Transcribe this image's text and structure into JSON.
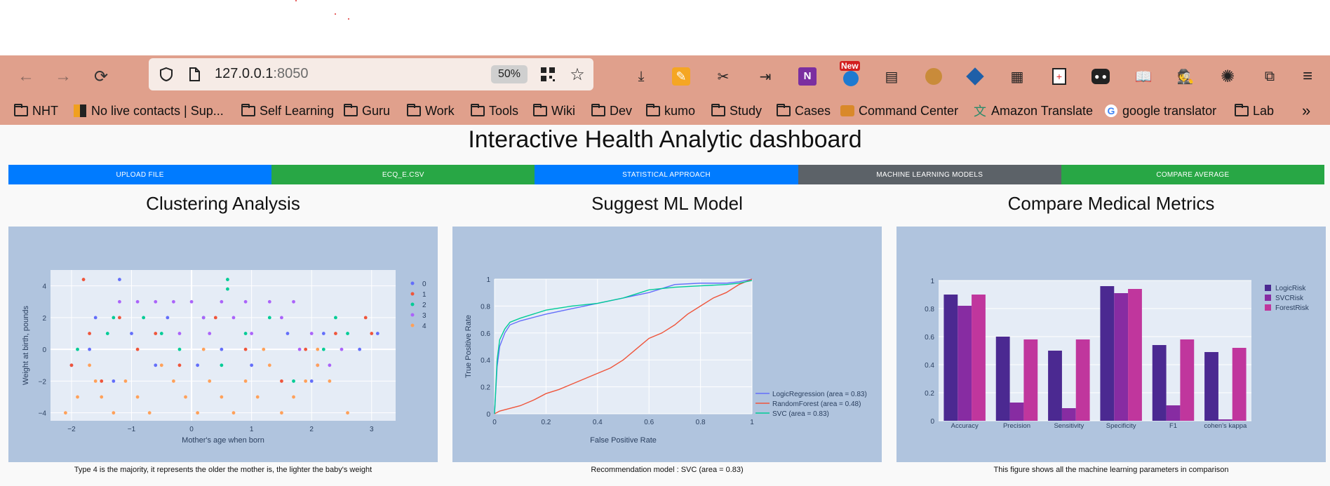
{
  "browser": {
    "url_host": "127.0.0.1",
    "url_port": ":8050",
    "zoom": "50%",
    "toolbar_icons": [
      "download-icon",
      "pencil-icon",
      "crossed-icon",
      "login-icon",
      "onenote-icon",
      "new-badge-icon",
      "app-icon",
      "monkey-icon",
      "diamond-icon",
      "apps-icon",
      "clipboard-icon",
      "glasses-icon",
      "book-icon",
      "mask-icon",
      "sun-icon",
      "extensions-icon",
      "menu-icon"
    ],
    "new_badge": "New",
    "bookmarks": [
      {
        "label": "NHT",
        "icon": "folder"
      },
      {
        "label": "No live contacts | Sup...",
        "icon": "app"
      },
      {
        "label": "Self Learning",
        "icon": "folder"
      },
      {
        "label": "Guru",
        "icon": "folder"
      },
      {
        "label": "Work",
        "icon": "folder"
      },
      {
        "label": "Tools",
        "icon": "folder"
      },
      {
        "label": "Wiki",
        "icon": "folder"
      },
      {
        "label": "Dev",
        "icon": "folder"
      },
      {
        "label": "kumo",
        "icon": "folder"
      },
      {
        "label": "Study",
        "icon": "folder"
      },
      {
        "label": "Cases",
        "icon": "folder"
      },
      {
        "label": "Command Center",
        "icon": "app"
      },
      {
        "label": "Amazon Translate",
        "icon": "translate"
      },
      {
        "label": "google translator",
        "icon": "google"
      },
      {
        "label": "Lab",
        "icon": "folder"
      }
    ],
    "overflow": "»"
  },
  "dashboard": {
    "title": "Interactive Health Analytic dashboard",
    "tabs": [
      {
        "label": "UPLOAD FILE",
        "color": "#007bff"
      },
      {
        "label": "ECQ_E.CSV",
        "color": "#28a745"
      },
      {
        "label": "STATISTICAL APPROACH",
        "color": "#007bff"
      },
      {
        "label": "MACHINE LEARNING MODELS",
        "color": "#5c6268"
      },
      {
        "label": "COMPARE AVERAGE",
        "color": "#28a745"
      }
    ],
    "panels": [
      {
        "title": "Clustering Analysis",
        "caption": "Type 4 is the majority, it represents the older the mother is, the lighter the baby's weight"
      },
      {
        "title": "Suggest ML Model",
        "caption": "Recommendation model : SVC (area = 0.83)"
      },
      {
        "title": "Compare Medical Metrics",
        "caption": "This figure shows all the machine learning parameters in comparison"
      }
    ]
  },
  "chart_data": [
    {
      "type": "scatter",
      "xlabel": "Mother's age when born",
      "ylabel": "Weight at birth, pounds",
      "xlim": [
        -2.35,
        3.4
      ],
      "ylim": [
        -4.5,
        5.0
      ],
      "xticks": [
        -2,
        -1,
        0,
        1,
        2,
        3
      ],
      "xtick_labels": [
        "−2",
        "−1",
        "0",
        "1",
        "2",
        "3"
      ],
      "yticks": [
        -4,
        -2,
        0,
        2,
        4
      ],
      "ytick_labels": [
        "−4",
        "−2",
        "0",
        "2",
        "4"
      ],
      "legend_placement": "top-right",
      "series": [
        {
          "name": "0",
          "color": "#636efa",
          "points": [
            [
              -2,
              -1
            ],
            [
              -1.7,
              0
            ],
            [
              -1.6,
              2
            ],
            [
              -1.3,
              -2
            ],
            [
              -1.2,
              4.4
            ],
            [
              -1,
              1
            ],
            [
              -0.6,
              -1
            ],
            [
              -0.4,
              2
            ],
            [
              0.1,
              -1
            ],
            [
              0.5,
              0
            ],
            [
              1,
              -1
            ],
            [
              1.6,
              1
            ],
            [
              2,
              -2
            ],
            [
              2.2,
              1
            ],
            [
              2.8,
              0
            ],
            [
              3.1,
              1
            ]
          ]
        },
        {
          "name": "1",
          "color": "#ef553b",
          "points": [
            [
              -2,
              -1
            ],
            [
              -1.8,
              4.4
            ],
            [
              -1.7,
              1
            ],
            [
              -1.5,
              -2
            ],
            [
              -1.2,
              2
            ],
            [
              -0.9,
              0
            ],
            [
              -0.6,
              1
            ],
            [
              -0.2,
              -1
            ],
            [
              0.4,
              2
            ],
            [
              0.9,
              0
            ],
            [
              1.5,
              -2
            ],
            [
              1.9,
              0
            ],
            [
              2.4,
              1
            ],
            [
              2.9,
              2
            ],
            [
              3.0,
              1
            ]
          ]
        },
        {
          "name": "2",
          "color": "#00cc96",
          "points": [
            [
              -1.9,
              0
            ],
            [
              -1.4,
              1
            ],
            [
              -1.3,
              2
            ],
            [
              -0.8,
              2
            ],
            [
              -0.5,
              1
            ],
            [
              -0.2,
              0
            ],
            [
              0.2,
              2
            ],
            [
              0.5,
              -1
            ],
            [
              0.6,
              4.4
            ],
            [
              0.6,
              3.8
            ],
            [
              0.9,
              1
            ],
            [
              1.3,
              2
            ],
            [
              1.7,
              -2
            ],
            [
              2.2,
              0
            ],
            [
              2.4,
              2
            ],
            [
              2.6,
              1
            ]
          ]
        },
        {
          "name": "3",
          "color": "#ab63fa",
          "points": [
            [
              -1.2,
              3
            ],
            [
              -0.9,
              3
            ],
            [
              -0.6,
              3
            ],
            [
              -0.3,
              3
            ],
            [
              -0.2,
              1
            ],
            [
              0,
              3
            ],
            [
              0.2,
              2
            ],
            [
              0.3,
              1
            ],
            [
              0.5,
              3
            ],
            [
              0.7,
              2
            ],
            [
              0.9,
              3
            ],
            [
              1,
              1
            ],
            [
              1.3,
              3
            ],
            [
              1.5,
              2
            ],
            [
              1.7,
              3
            ],
            [
              1.8,
              0
            ],
            [
              2,
              1
            ],
            [
              2.1,
              -1
            ],
            [
              2.3,
              -1
            ],
            [
              2.5,
              0
            ]
          ]
        },
        {
          "name": "4",
          "color": "#ffa15a",
          "points": [
            [
              -2.1,
              -4
            ],
            [
              -1.9,
              -3
            ],
            [
              -1.7,
              -1
            ],
            [
              -1.6,
              -2
            ],
            [
              -1.5,
              -3
            ],
            [
              -1.3,
              -4
            ],
            [
              -1.1,
              -2
            ],
            [
              -0.9,
              -3
            ],
            [
              -0.7,
              -4
            ],
            [
              -0.5,
              -1
            ],
            [
              -0.3,
              -2
            ],
            [
              -0.1,
              -3
            ],
            [
              0.1,
              -4
            ],
            [
              0.3,
              -2
            ],
            [
              0.5,
              -3
            ],
            [
              0.7,
              -4
            ],
            [
              0.9,
              -2
            ],
            [
              1.1,
              -3
            ],
            [
              1.3,
              -1
            ],
            [
              1.5,
              -4
            ],
            [
              1.7,
              -3
            ],
            [
              1.9,
              -2
            ],
            [
              2.1,
              -1
            ],
            [
              2.3,
              -2
            ],
            [
              2.6,
              -4
            ],
            [
              2.1,
              0
            ],
            [
              1.2,
              0
            ],
            [
              0.2,
              0
            ]
          ]
        }
      ]
    },
    {
      "type": "line",
      "xlabel": "False Positive Rate",
      "ylabel": "True Positive Rate",
      "xlim": [
        0,
        1
      ],
      "ylim": [
        0,
        1
      ],
      "xticks": [
        0,
        0.2,
        0.4,
        0.6,
        0.8,
        1
      ],
      "xtick_labels": [
        "0",
        "0.2",
        "0.4",
        "0.6",
        "0.8",
        "1"
      ],
      "yticks": [
        0,
        0.2,
        0.4,
        0.6,
        0.8,
        1
      ],
      "ytick_labels": [
        "0",
        "0.2",
        "0.4",
        "0.6",
        "0.8",
        "1"
      ],
      "legend_placement": "bottom-right",
      "series": [
        {
          "name": "LogicRegression (area = 0.83)",
          "color": "#636efa",
          "x": [
            0,
            0.01,
            0.02,
            0.04,
            0.06,
            0.1,
            0.2,
            0.3,
            0.4,
            0.5,
            0.6,
            0.7,
            0.8,
            0.9,
            0.95,
            1.0
          ],
          "y": [
            0,
            0.35,
            0.5,
            0.6,
            0.66,
            0.69,
            0.74,
            0.78,
            0.82,
            0.86,
            0.9,
            0.96,
            0.97,
            0.97,
            0.98,
            1.0
          ]
        },
        {
          "name": "RandomForest (area = 0.48)",
          "color": "#ef553b",
          "x": [
            0,
            0.02,
            0.1,
            0.15,
            0.2,
            0.25,
            0.3,
            0.4,
            0.45,
            0.5,
            0.55,
            0.6,
            0.65,
            0.7,
            0.75,
            0.8,
            0.85,
            0.9,
            0.95,
            1.0
          ],
          "y": [
            0,
            0.02,
            0.06,
            0.1,
            0.15,
            0.18,
            0.22,
            0.3,
            0.34,
            0.4,
            0.48,
            0.56,
            0.6,
            0.66,
            0.74,
            0.8,
            0.86,
            0.9,
            0.96,
            1.0
          ]
        },
        {
          "name": "SVC (area = 0.83)",
          "color": "#00cc96",
          "x": [
            0,
            0.01,
            0.02,
            0.04,
            0.06,
            0.1,
            0.2,
            0.3,
            0.4,
            0.5,
            0.6,
            0.7,
            0.8,
            0.9,
            0.95,
            1.0
          ],
          "y": [
            0,
            0.4,
            0.55,
            0.63,
            0.68,
            0.71,
            0.77,
            0.8,
            0.82,
            0.86,
            0.92,
            0.94,
            0.95,
            0.96,
            0.97,
            0.99
          ]
        }
      ]
    },
    {
      "type": "bar",
      "categories": [
        "Accuracy",
        "Precision",
        "Sensitivity",
        "Specificity",
        "F1",
        "cohen's kappa"
      ],
      "ylim": [
        0,
        1
      ],
      "yticks": [
        0,
        0.2,
        0.4,
        0.6,
        0.8,
        1
      ],
      "ytick_labels": [
        "0",
        "0.2",
        "0.4",
        "0.6",
        "0.8",
        "1"
      ],
      "legend_placement": "top-right",
      "series": [
        {
          "name": "LogicRisk",
          "color": "#4b2991",
          "values": [
            0.9,
            0.6,
            0.5,
            0.96,
            0.54,
            0.49
          ]
        },
        {
          "name": "SVCRisk",
          "color": "#872ca2",
          "values": [
            0.82,
            0.13,
            0.09,
            0.91,
            0.11,
            0.01
          ]
        },
        {
          "name": "ForestRisk",
          "color": "#c0369d",
          "values": [
            0.9,
            0.58,
            0.58,
            0.94,
            0.58,
            0.52
          ]
        }
      ]
    }
  ]
}
